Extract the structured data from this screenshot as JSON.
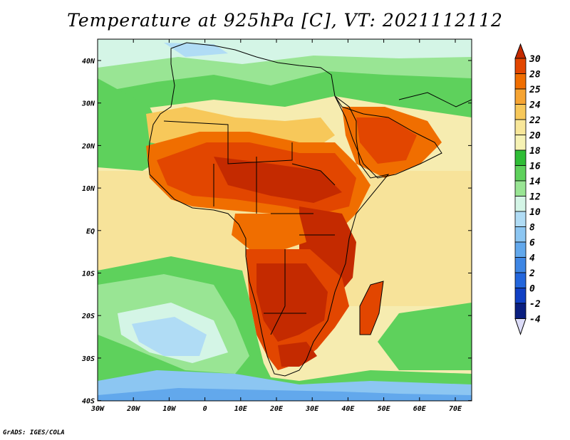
{
  "title": "Temperature at 925hPa [C], VT: 2021112112",
  "credit": "GrADS: IGES/COLA",
  "map": {
    "lon_ticks": [
      "30W",
      "20W",
      "10W",
      "0",
      "10E",
      "20E",
      "30E",
      "40E",
      "50E",
      "60E",
      "70E"
    ],
    "lat_ticks": [
      "40N",
      "30N",
      "20N",
      "10N",
      "EQ",
      "10S",
      "20S",
      "30S",
      "40S"
    ]
  },
  "colorbar": {
    "labels": [
      "30",
      "28",
      "25",
      "24",
      "22",
      "20",
      "18",
      "16",
      "14",
      "12",
      "10",
      "8",
      "6",
      "4",
      "2",
      "0",
      "-2",
      "-4"
    ],
    "colors": [
      "#c42a00",
      "#e24600",
      "#f06e00",
      "#f6a432",
      "#f7c85a",
      "#f8e79a",
      "#f6f2b4",
      "#2fbd36",
      "#5ed15c",
      "#99e594",
      "#d4f5e6",
      "#b0dcf5",
      "#8cc6f2",
      "#62a8ec",
      "#3e86e4",
      "#2366dc",
      "#1040c4",
      "#0a1f80"
    ]
  }
}
